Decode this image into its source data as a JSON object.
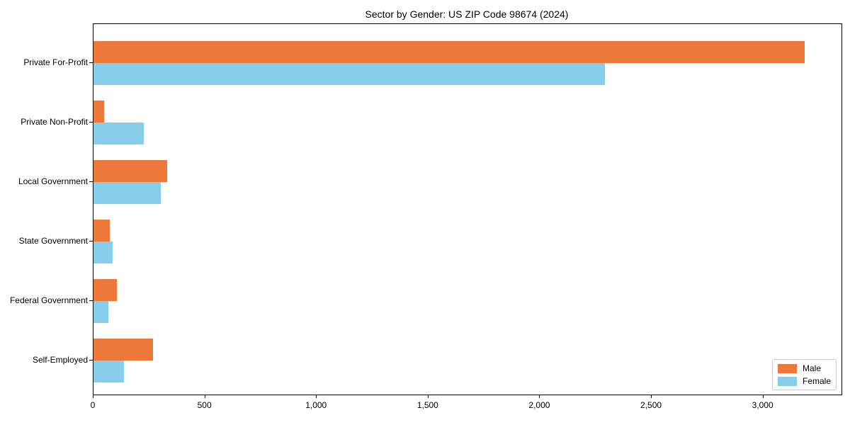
{
  "chart_data": {
    "type": "bar",
    "orientation": "horizontal",
    "title": "Sector by Gender: US ZIP Code 98674 (2024)",
    "categories": [
      "Private For-Profit",
      "Private Non-Profit",
      "Local Government",
      "State Government",
      "Federal Government",
      "Self-Employed"
    ],
    "series": [
      {
        "name": "Male",
        "color": "#ec7839",
        "values": [
          3185,
          47,
          330,
          74,
          104,
          266
        ]
      },
      {
        "name": "Female",
        "color": "#87ceeb",
        "values": [
          2290,
          225,
          300,
          86,
          67,
          135
        ]
      }
    ],
    "xlabel": "",
    "ylabel": "",
    "xlim": [
      0,
      3350
    ],
    "x_ticks": [
      0,
      500,
      1000,
      1500,
      2000,
      2500,
      3000
    ],
    "x_tick_labels": [
      "0",
      "500",
      "1,000",
      "1,500",
      "2,000",
      "2,500",
      "3,000"
    ],
    "grid": false,
    "legend": {
      "position": "lower right",
      "entries": [
        "Male",
        "Female"
      ]
    },
    "colors": {
      "male": "#ec7839",
      "female": "#87ceeb",
      "spine": "#000000",
      "background": "#ffffff",
      "legend_border": "#cccccc"
    }
  }
}
